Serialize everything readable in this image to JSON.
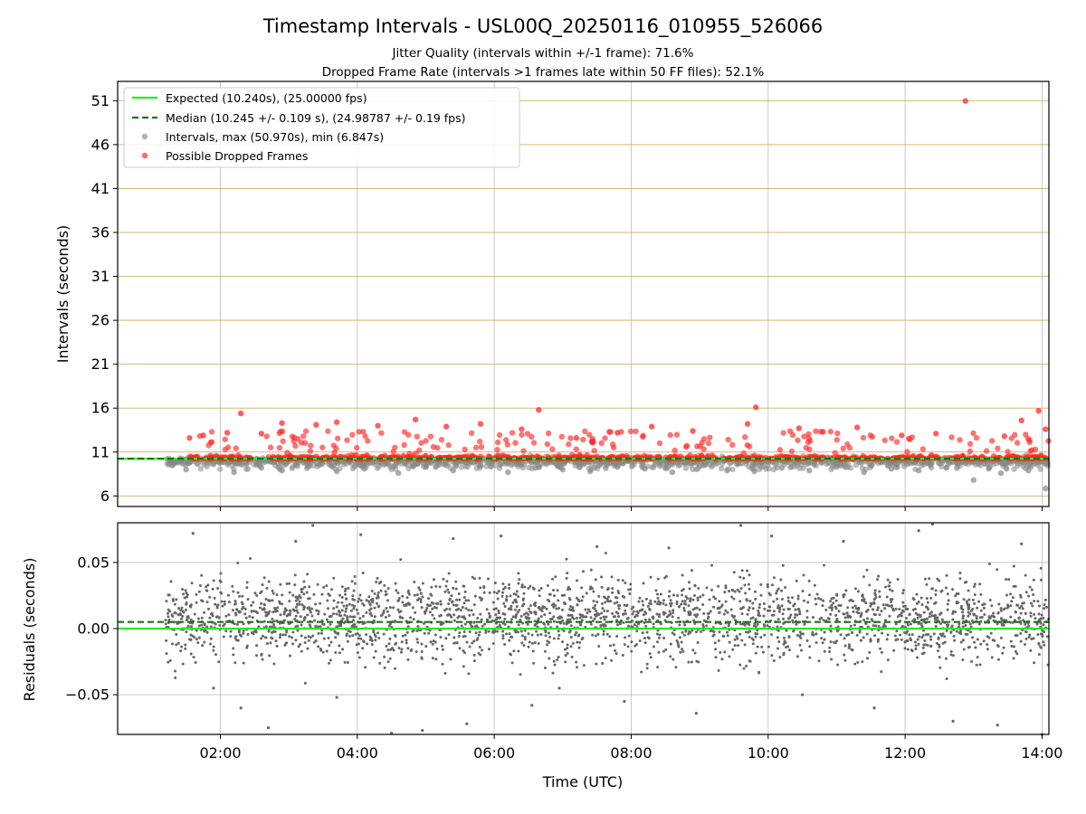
{
  "chart_data": [
    {
      "type": "scatter",
      "title": "Timestamp Intervals - USL00Q_20250116_010955_526066",
      "subtitle_lines": [
        "Jitter Quality (intervals within +/-1 frame): 71.6%",
        "Dropped Frame Rate (intervals >1 frames late within 50 FF files): 52.1%"
      ],
      "xlabel": "",
      "ylabel": "Intervals (seconds)",
      "xlim_hours": [
        0.5,
        14.1
      ],
      "ylim": [
        4.8,
        53.2
      ],
      "y_ticks": [
        6,
        11,
        16,
        21,
        26,
        31,
        36,
        41,
        46,
        51
      ],
      "x_ticks": [
        2,
        4,
        6,
        8,
        10,
        12,
        14
      ],
      "grid": true,
      "legend_position": "top-left",
      "legend": [
        {
          "label": "Expected (10.240s), (25.00000 fps)",
          "kind": "line-solid",
          "color": "#22ee22"
        },
        {
          "label": "Median (10.245 +/- 0.109 s), (24.98787 +/- 0.19 fps)",
          "kind": "line-dashed",
          "color": "#117711"
        },
        {
          "label": "Intervals, max (50.970s), min (6.847s)",
          "kind": "dot",
          "color": "#888888"
        },
        {
          "label": "Possible Dropped Frames",
          "kind": "dot",
          "color": "#ff2a2a"
        }
      ],
      "expected_interval": 10.24,
      "median_interval": 10.245,
      "series": [
        {
          "name": "Intervals, max (50.970s), min (6.847s)",
          "points": [
            [
              1.5,
              9.0
            ],
            [
              1.9,
              9.6
            ],
            [
              2.2,
              8.7
            ],
            [
              2.6,
              9.2
            ],
            [
              2.9,
              8.9
            ],
            [
              3.3,
              9.4
            ],
            [
              3.7,
              8.8
            ],
            [
              4.1,
              9.1
            ],
            [
              4.6,
              8.6
            ],
            [
              5.0,
              9.3
            ],
            [
              5.4,
              8.9
            ],
            [
              5.8,
              9.5
            ],
            [
              6.2,
              8.7
            ],
            [
              6.6,
              9.2
            ],
            [
              7.0,
              9.0
            ],
            [
              7.4,
              8.8
            ],
            [
              7.8,
              9.3
            ],
            [
              8.2,
              9.1
            ],
            [
              8.6,
              8.7
            ],
            [
              9.0,
              9.4
            ],
            [
              9.4,
              8.9
            ],
            [
              9.8,
              8.8
            ],
            [
              10.2,
              9.2
            ],
            [
              10.6,
              8.9
            ],
            [
              11.0,
              9.3
            ],
            [
              11.4,
              8.7
            ],
            [
              11.8,
              9.1
            ],
            [
              12.2,
              8.9
            ],
            [
              12.6,
              9.2
            ],
            [
              13.0,
              7.8
            ],
            [
              13.4,
              8.6
            ],
            [
              13.8,
              8.9
            ],
            [
              14.05,
              6.85
            ]
          ]
        },
        {
          "name": "Possible Dropped Frames",
          "points": [
            [
              1.55,
              12.6
            ],
            [
              1.75,
              12.9
            ],
            [
              2.1,
              13.2
            ],
            [
              2.3,
              15.4
            ],
            [
              2.6,
              13.1
            ],
            [
              2.9,
              14.3
            ],
            [
              3.4,
              14.1
            ],
            [
              3.7,
              14.4
            ],
            [
              4.3,
              14.0
            ],
            [
              4.85,
              14.7
            ],
            [
              5.3,
              13.9
            ],
            [
              5.8,
              14.2
            ],
            [
              6.4,
              13.6
            ],
            [
              6.65,
              15.8
            ],
            [
              7.2,
              12.6
            ],
            [
              7.8,
              13.2
            ],
            [
              8.3,
              13.9
            ],
            [
              8.9,
              13.4
            ],
            [
              9.7,
              14.2
            ],
            [
              9.82,
              16.1
            ],
            [
              10.45,
              13.7
            ],
            [
              10.8,
              13.3
            ],
            [
              11.3,
              13.8
            ],
            [
              11.95,
              12.9
            ],
            [
              12.45,
              13.1
            ],
            [
              12.88,
              50.97
            ],
            [
              13.45,
              12.8
            ],
            [
              13.7,
              14.6
            ],
            [
              13.95,
              15.7
            ],
            [
              14.05,
              13.6
            ]
          ]
        }
      ]
    },
    {
      "type": "scatter",
      "xlabel": "Time (UTC)",
      "ylabel": "Residuals (seconds)",
      "xlim_hours": [
        0.5,
        14.1
      ],
      "ylim": [
        -0.08,
        0.08
      ],
      "y_ticks": [
        -0.05,
        0.0,
        0.05
      ],
      "y_tick_labels": [
        "−0.05",
        "0.00",
        "0.05"
      ],
      "x_ticks": [
        2,
        4,
        6,
        8,
        10,
        12,
        14
      ],
      "x_tick_labels": [
        "02:00",
        "04:00",
        "06:00",
        "08:00",
        "10:00",
        "12:00",
        "14:00"
      ],
      "grid": true,
      "expected_residual": 0.0,
      "median_residual": 0.005,
      "marker_color": "#666666",
      "series": [
        {
          "name": "",
          "points": [
            [
              1.6,
              0.072
            ],
            [
              1.9,
              -0.045
            ],
            [
              2.3,
              -0.06
            ],
            [
              2.7,
              -0.075
            ],
            [
              3.1,
              0.066
            ],
            [
              3.35,
              0.078
            ],
            [
              3.7,
              -0.052
            ],
            [
              4.05,
              0.071
            ],
            [
              4.5,
              -0.079
            ],
            [
              4.95,
              -0.077
            ],
            [
              5.4,
              0.068
            ],
            [
              5.6,
              -0.072
            ],
            [
              6.1,
              0.07
            ],
            [
              6.55,
              -0.058
            ],
            [
              6.95,
              -0.045
            ],
            [
              7.5,
              0.062
            ],
            [
              7.9,
              -0.055
            ],
            [
              8.55,
              0.061
            ],
            [
              8.95,
              -0.064
            ],
            [
              9.6,
              0.078
            ],
            [
              10.05,
              0.07
            ],
            [
              10.5,
              -0.05
            ],
            [
              11.1,
              0.066
            ],
            [
              11.55,
              -0.06
            ],
            [
              12.2,
              0.074
            ],
            [
              12.4,
              0.079
            ],
            [
              12.7,
              -0.07
            ],
            [
              13.35,
              -0.073
            ],
            [
              13.7,
              0.064
            ],
            [
              14.0,
              -0.08
            ]
          ]
        }
      ]
    }
  ]
}
